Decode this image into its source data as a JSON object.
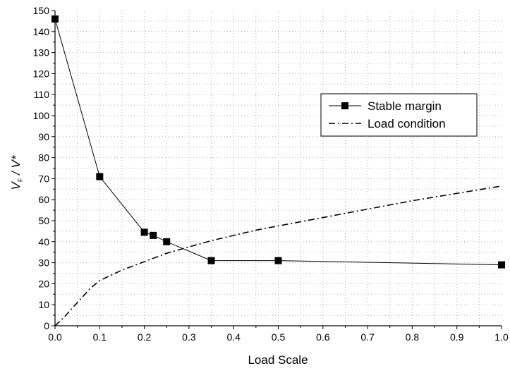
{
  "chart_data": {
    "type": "line",
    "xlabel": "Load Scale",
    "ylabel": {
      "main": "V",
      "sub": "F",
      "rest": " / V*"
    },
    "xlim": [
      0.0,
      1.0
    ],
    "ylim": [
      0,
      150
    ],
    "xticks": [
      "0.0",
      "0.1",
      "0.2",
      "0.3",
      "0.4",
      "0.5",
      "0.6",
      "0.7",
      "0.8",
      "0.9",
      "1.0"
    ],
    "yticks": [
      "0",
      "10",
      "20",
      "30",
      "40",
      "50",
      "60",
      "70",
      "80",
      "90",
      "100",
      "110",
      "120",
      "130",
      "140",
      "150"
    ],
    "grid": true,
    "legend_position": "right",
    "series": [
      {
        "name": "Stable margin",
        "style": "solid-square-markers",
        "color": "#000000",
        "x": [
          0.0,
          0.1,
          0.2,
          0.22,
          0.25,
          0.35,
          0.5,
          1.0
        ],
        "y": [
          146,
          71,
          44.5,
          43,
          40,
          31,
          31,
          29
        ]
      },
      {
        "name": "Load condition",
        "style": "dash-dot",
        "color": "#000000",
        "x": [
          0.0,
          0.02,
          0.05,
          0.08,
          0.1,
          0.15,
          0.2,
          0.25,
          0.3,
          0.35,
          0.4,
          0.45,
          0.5,
          0.6,
          0.7,
          0.8,
          0.9,
          1.0
        ],
        "y": [
          0,
          4,
          11,
          18,
          21.5,
          26.5,
          30.5,
          34.5,
          37.5,
          40.5,
          43,
          45.5,
          47.5,
          51.5,
          55.5,
          59.5,
          63,
          66.5
        ]
      }
    ]
  }
}
